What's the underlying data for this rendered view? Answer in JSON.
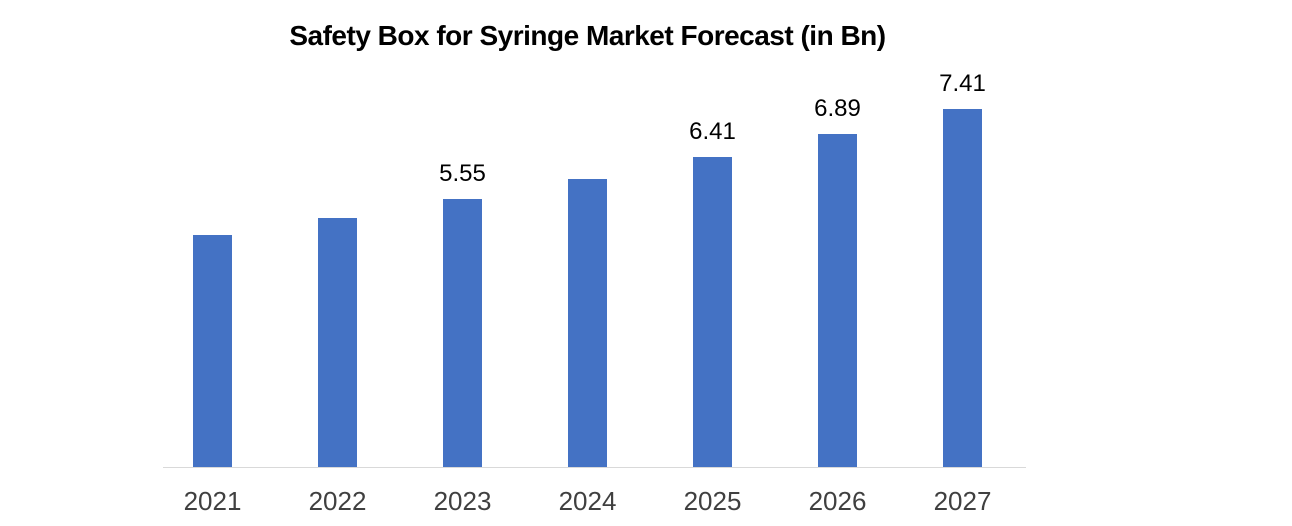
{
  "chart_data": {
    "type": "bar",
    "title": "Safety Box for Syringe Market Forecast (in Bn)",
    "categories": [
      "2021",
      "2022",
      "2023",
      "2024",
      "2025",
      "2026",
      "2027"
    ],
    "values": [
      4.8,
      5.16,
      5.55,
      5.97,
      6.41,
      6.89,
      7.41
    ],
    "data_labels": [
      "",
      "",
      "5.55",
      "",
      "6.41",
      "6.89",
      "7.41"
    ],
    "xlabel": "",
    "ylabel": "",
    "ylim": [
      0,
      7.75
    ],
    "grid": false,
    "legend": false,
    "bar_color": "#4472C4",
    "axis_line_color": "#D9D9D9",
    "title_color": "#000000",
    "data_label_color": "#000000",
    "tick_label_color": "#404040",
    "background_color": "#FFFFFF"
  }
}
